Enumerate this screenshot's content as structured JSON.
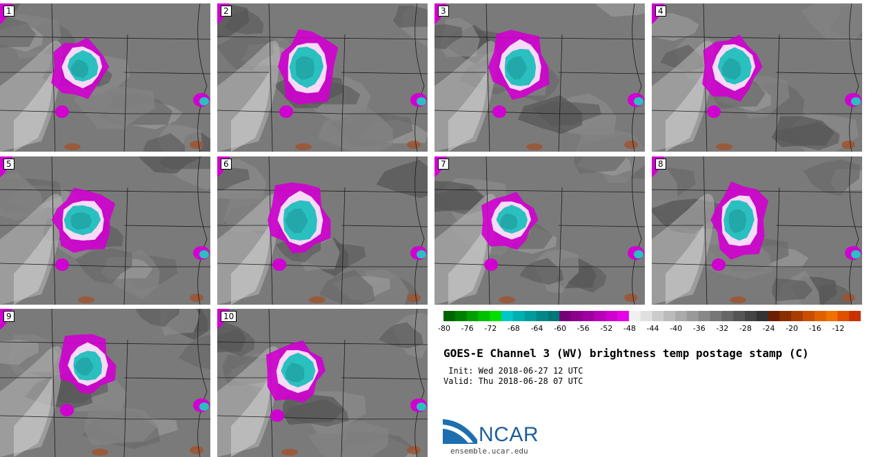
{
  "stamps": [
    {
      "label": "1",
      "core": [
        118,
        92
      ],
      "rx": 22,
      "ry": 22
    },
    {
      "label": "2",
      "core": [
        128,
        92
      ],
      "rx": 24,
      "ry": 30
    },
    {
      "label": "3",
      "core": [
        122,
        92
      ],
      "rx": 24,
      "ry": 28
    },
    {
      "label": "4",
      "core": [
        118,
        92
      ],
      "rx": 24,
      "ry": 26
    },
    {
      "label": "5",
      "core": [
        118,
        92
      ],
      "rx": 26,
      "ry": 22
    },
    {
      "label": "6",
      "core": [
        118,
        92
      ],
      "rx": 26,
      "ry": 30
    },
    {
      "label": "7",
      "core": [
        110,
        92
      ],
      "rx": 22,
      "ry": 20
    },
    {
      "label": "8",
      "core": [
        125,
        92
      ],
      "rx": 22,
      "ry": 30
    },
    {
      "label": "9",
      "core": [
        125,
        82
      ],
      "rx": 22,
      "ry": 22
    },
    {
      "label": "10",
      "core": [
        115,
        90
      ],
      "rx": 24,
      "ry": 24
    }
  ],
  "colorbar": {
    "colors": [
      "#006400",
      "#008000",
      "#00a000",
      "#00c000",
      "#00e000",
      "#00c8c8",
      "#00b0b0",
      "#009c9c",
      "#008888",
      "#007878",
      "#760076",
      "#8c008c",
      "#a000a0",
      "#b800b8",
      "#d000d0",
      "#e800e8",
      "#f0f0f0",
      "#e0e0e0",
      "#cccccc",
      "#bbbbbb",
      "#aaaaaa",
      "#999999",
      "#888888",
      "#777777",
      "#666666",
      "#555555",
      "#444444",
      "#333333",
      "#6b1f00",
      "#8a2e00",
      "#a83d00",
      "#c84f00",
      "#e06000",
      "#f07000",
      "#e05000",
      "#c83200"
    ],
    "ticks": [
      "-80",
      "-76",
      "-72",
      "-68",
      "-64",
      "-60",
      "-56",
      "-52",
      "-48",
      "-44",
      "-40",
      "-36",
      "-32",
      "-28",
      "-24",
      "-20",
      "-16",
      "-12"
    ]
  },
  "title": "GOES-E Channel 3 (WV) brightness temp postage stamp (C)",
  "init": " Init: Wed 2018-06-27 12 UTC",
  "valid": "Valid: Thu 2018-06-28 07 UTC",
  "logo": {
    "text": "NCAR",
    "url": "ensemble.ucar.edu"
  }
}
